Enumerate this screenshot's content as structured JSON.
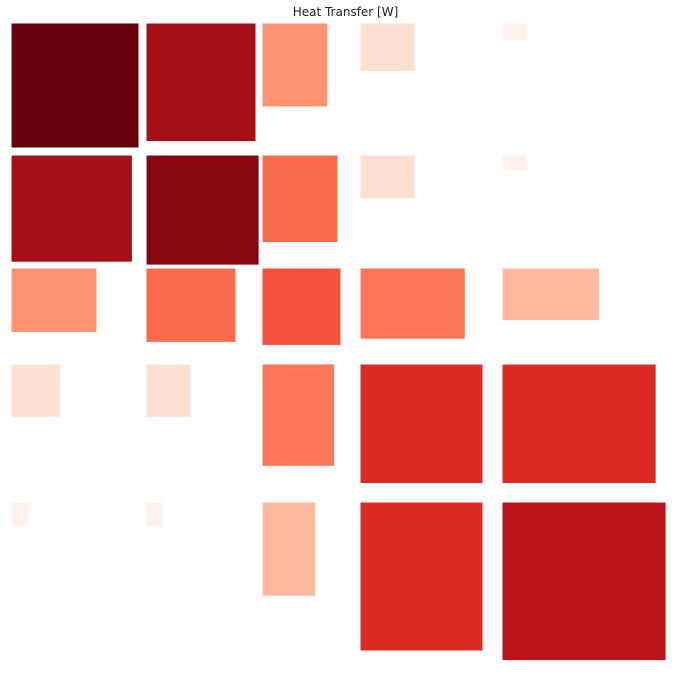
{
  "chart_data": {
    "type": "heatmap",
    "title": "Heat Transfer [W]",
    "xlabel": "",
    "ylabel": "",
    "grid": false,
    "legend": "none",
    "colormap": "Reds",
    "color_range": [
      0,
      1
    ],
    "rows": 5,
    "cols": 5,
    "note_values": "cell area and color both encode relative magnitude (0-1); axes not printed",
    "values": [
      [
        1.0,
        0.9,
        0.45,
        0.15,
        0.02
      ],
      [
        0.9,
        0.95,
        0.6,
        0.15,
        0.02
      ],
      [
        0.45,
        0.6,
        0.65,
        0.55,
        0.3
      ],
      [
        0.15,
        0.15,
        0.55,
        0.75,
        0.75
      ],
      [
        0.02,
        0.02,
        0.3,
        0.75,
        0.85
      ]
    ]
  }
}
